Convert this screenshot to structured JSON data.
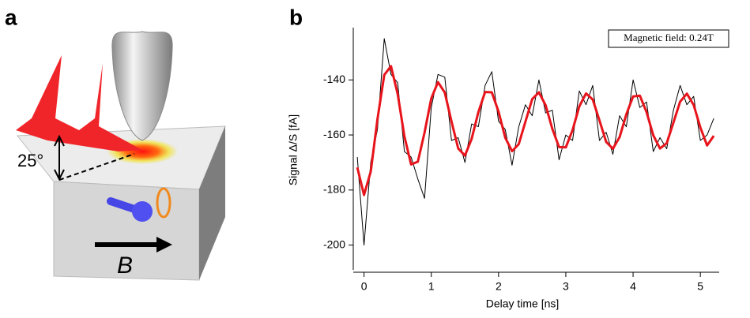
{
  "panel_a": {
    "label": "a",
    "angle": "25°",
    "field": "B"
  },
  "chart_data": {
    "type": "line",
    "panel_label": "b",
    "xlabel": "Delay time [ns]",
    "ylabel": "Signal Δ/S [fA]",
    "annotation": "Magnetic field: 0.24T",
    "x": [
      -0.1,
      0,
      0.1,
      0.2,
      0.3,
      0.4,
      0.5,
      0.6,
      0.7,
      0.8,
      0.9,
      1.0,
      1.1,
      1.2,
      1.3,
      1.4,
      1.5,
      1.6,
      1.7,
      1.8,
      1.9,
      2.0,
      2.1,
      2.2,
      2.3,
      2.4,
      2.5,
      2.6,
      2.7,
      2.8,
      2.9,
      3.0,
      3.1,
      3.2,
      3.3,
      3.4,
      3.5,
      3.6,
      3.7,
      3.8,
      3.9,
      4.0,
      4.1,
      4.2,
      4.3,
      4.4,
      4.5,
      4.6,
      4.7,
      4.8,
      4.9,
      5.0,
      5.1,
      5.2
    ],
    "series": [
      {
        "color": "#000000",
        "values": [
          -168,
          -200,
          -170,
          -158,
          -125,
          -138,
          -141,
          -166,
          -168,
          -176,
          -183,
          -150,
          -138,
          -139,
          -162,
          -161,
          -170,
          -156,
          -157,
          -142,
          -137,
          -155,
          -158,
          -171,
          -157,
          -149,
          -153,
          -140,
          -152,
          -151,
          -169,
          -160,
          -162,
          -144,
          -149,
          -142,
          -162,
          -159,
          -167,
          -153,
          -157,
          -140,
          -150,
          -148,
          -166,
          -161,
          -165,
          -151,
          -142,
          -149,
          -146,
          -162,
          -160,
          -154
        ]
      },
      {
        "color": "#e8141c",
        "values": [
          -171.8,
          -181.8,
          -173.3,
          -154.3,
          -138.2,
          -135.0,
          -145.1,
          -160.5,
          -170.7,
          -169.7,
          -159.1,
          -146.7,
          -140.8,
          -144.6,
          -155.1,
          -164.9,
          -167.5,
          -161.4,
          -151.7,
          -144.4,
          -144.5,
          -151.5,
          -161.0,
          -165.9,
          -163.3,
          -155.1,
          -147.0,
          -144.5,
          -149.2,
          -157.8,
          -164.4,
          -164.5,
          -158.2,
          -149.6,
          -144.9,
          -147.1,
          -154.7,
          -162.5,
          -165.0,
          -160.8,
          -152.5,
          -146.0,
          -145.7,
          -151.7,
          -160.1,
          -164.9,
          -163.0,
          -155.5,
          -147.9,
          -145.0,
          -149.1,
          -157.3,
          -163.8,
          -160.3
        ]
      }
    ],
    "xlim": [
      -0.16,
      5.28
    ],
    "xticks": [
      0,
      1,
      2,
      3,
      4,
      5
    ],
    "ylim": [
      -209,
      -121
    ],
    "yticks": [
      -200,
      -180,
      -160,
      -140
    ]
  }
}
